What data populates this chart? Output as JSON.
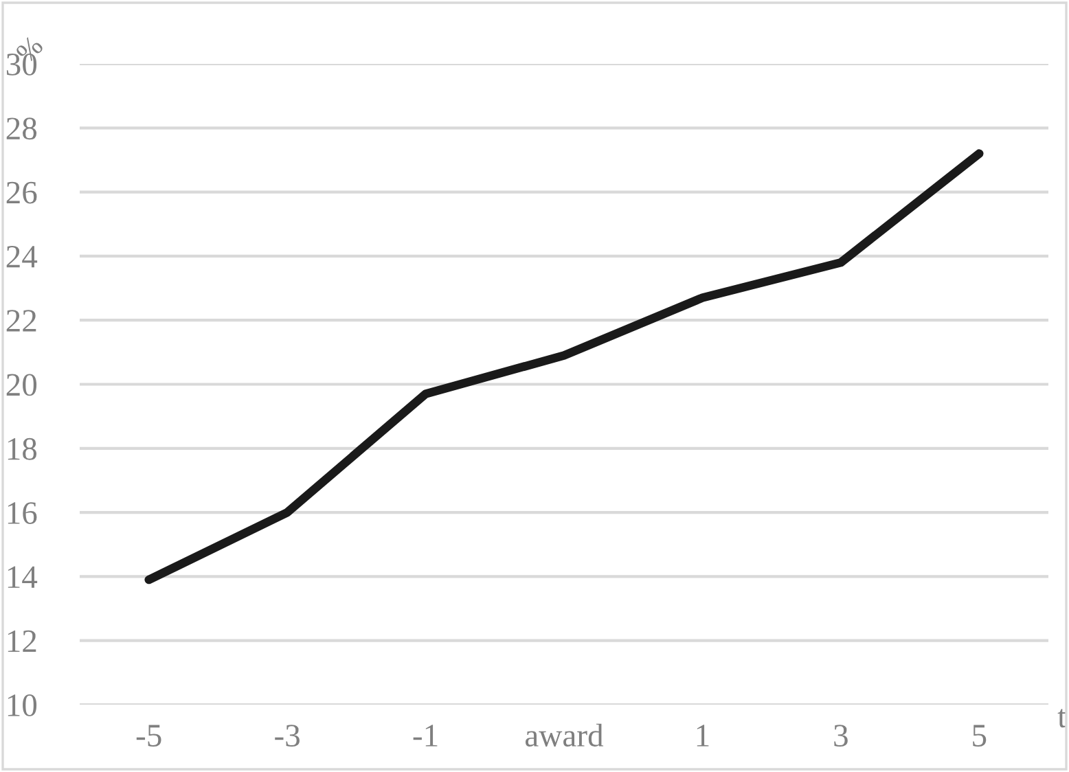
{
  "chart_data": {
    "type": "line",
    "xlabel": "t",
    "ylabel": "%",
    "categories": [
      "-5",
      "-3",
      "-1",
      "award",
      "1",
      "3",
      "5"
    ],
    "series": [
      {
        "color": "#1a1a1a",
        "values": [
          13.9,
          16.0,
          19.7,
          20.9,
          22.7,
          23.8,
          27.2
        ]
      }
    ],
    "ylim": [
      10,
      30
    ],
    "yticks": [
      10,
      12,
      14,
      16,
      18,
      20,
      22,
      24,
      26,
      28,
      30
    ],
    "grid": "y",
    "legend": false,
    "marker": "none",
    "line_style": "solid"
  }
}
